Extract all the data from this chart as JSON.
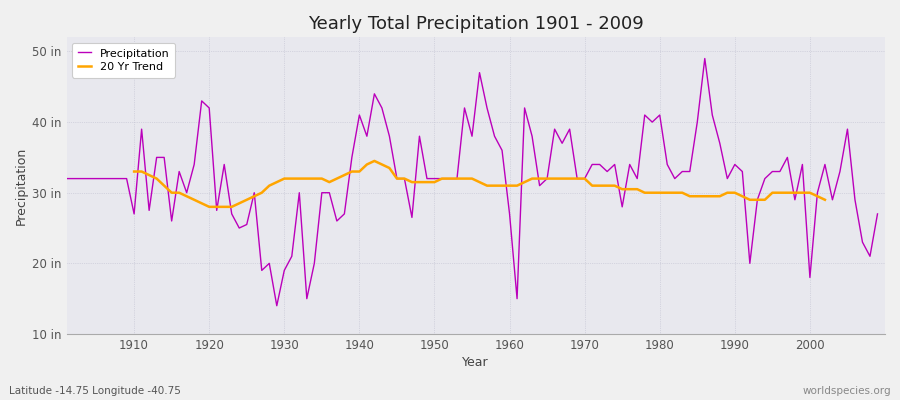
{
  "title": "Yearly Total Precipitation 1901 - 2009",
  "xlabel": "Year",
  "ylabel": "Precipitation",
  "footnote_left": "Latitude -14.75 Longitude -40.75",
  "footnote_right": "worldspecies.org",
  "fig_facecolor": "#f0f0f0",
  "plot_facecolor": "#e8e8ee",
  "precip_color": "#bb00bb",
  "trend_color": "#ffa500",
  "ylim": [
    10,
    52
  ],
  "yticks": [
    10,
    20,
    30,
    40,
    50
  ],
  "ytick_labels": [
    "10 in",
    "20 in",
    "30 in",
    "40 in",
    "50 in"
  ],
  "years": [
    1901,
    1902,
    1903,
    1904,
    1905,
    1906,
    1907,
    1908,
    1909,
    1910,
    1911,
    1912,
    1913,
    1914,
    1915,
    1916,
    1917,
    1918,
    1919,
    1920,
    1921,
    1922,
    1923,
    1924,
    1925,
    1926,
    1927,
    1928,
    1929,
    1930,
    1931,
    1932,
    1933,
    1934,
    1935,
    1936,
    1937,
    1938,
    1939,
    1940,
    1941,
    1942,
    1943,
    1944,
    1945,
    1946,
    1947,
    1948,
    1949,
    1950,
    1951,
    1952,
    1953,
    1954,
    1955,
    1956,
    1957,
    1958,
    1959,
    1960,
    1961,
    1962,
    1963,
    1964,
    1965,
    1966,
    1967,
    1968,
    1969,
    1970,
    1971,
    1972,
    1973,
    1974,
    1975,
    1976,
    1977,
    1978,
    1979,
    1980,
    1981,
    1982,
    1983,
    1984,
    1985,
    1986,
    1987,
    1988,
    1989,
    1990,
    1991,
    1992,
    1993,
    1994,
    1995,
    1996,
    1997,
    1998,
    1999,
    2000,
    2001,
    2002,
    2003,
    2004,
    2005,
    2006,
    2007,
    2008,
    2009
  ],
  "precip": [
    32.0,
    32.0,
    32.0,
    32.0,
    32.0,
    32.0,
    32.0,
    32.0,
    32.0,
    27.0,
    39.0,
    27.5,
    35.0,
    35.0,
    26.0,
    33.0,
    30.0,
    34.0,
    43.0,
    42.0,
    27.5,
    34.0,
    27.0,
    25.0,
    25.5,
    30.0,
    19.0,
    20.0,
    14.0,
    19.0,
    21.0,
    30.0,
    15.0,
    20.0,
    30.0,
    30.0,
    26.0,
    27.0,
    35.0,
    41.0,
    38.0,
    44.0,
    42.0,
    38.0,
    32.0,
    32.0,
    26.5,
    38.0,
    32.0,
    32.0,
    32.0,
    32.0,
    32.0,
    42.0,
    38.0,
    47.0,
    42.0,
    38.0,
    36.0,
    27.0,
    15.0,
    42.0,
    38.0,
    31.0,
    32.0,
    39.0,
    37.0,
    39.0,
    32.0,
    32.0,
    34.0,
    34.0,
    33.0,
    34.0,
    28.0,
    34.0,
    32.0,
    41.0,
    40.0,
    41.0,
    34.0,
    32.0,
    33.0,
    33.0,
    40.0,
    49.0,
    41.0,
    37.0,
    32.0,
    34.0,
    33.0,
    20.0,
    29.0,
    32.0,
    33.0,
    33.0,
    35.0,
    29.0,
    34.0,
    18.0,
    30.0,
    34.0,
    29.0,
    33.0,
    39.0,
    29.0,
    23.0,
    21.0,
    27.0
  ],
  "trend_start_year": 1910,
  "trend": [
    33.0,
    33.0,
    32.5,
    32.0,
    31.0,
    30.0,
    30.0,
    29.5,
    29.0,
    28.5,
    28.0,
    28.0,
    28.0,
    28.0,
    28.5,
    29.0,
    29.5,
    30.0,
    31.0,
    31.5,
    32.0,
    32.0,
    32.0,
    32.0,
    32.0,
    32.0,
    31.5,
    32.0,
    32.5,
    33.0,
    33.0,
    34.0,
    34.5,
    34.0,
    33.5,
    32.0,
    32.0,
    31.5,
    31.5,
    31.5,
    31.5,
    32.0,
    32.0,
    32.0,
    32.0,
    32.0,
    31.5,
    31.0,
    31.0,
    31.0,
    31.0,
    31.0,
    31.5,
    32.0,
    32.0,
    32.0,
    32.0,
    32.0,
    32.0,
    32.0,
    32.0,
    31.0,
    31.0,
    31.0,
    31.0,
    30.5,
    30.5,
    30.5,
    30.0,
    30.0,
    30.0,
    30.0,
    30.0,
    30.0,
    29.5,
    29.5,
    29.5,
    29.5,
    29.5,
    30.0,
    30.0,
    29.5,
    29.0,
    29.0,
    29.0,
    30.0,
    30.0,
    30.0,
    30.0,
    30.0,
    30.0,
    29.5,
    29.0
  ],
  "xticks": [
    1910,
    1920,
    1930,
    1940,
    1950,
    1960,
    1970,
    1980,
    1990,
    2000
  ],
  "xlim": [
    1901,
    2010
  ]
}
